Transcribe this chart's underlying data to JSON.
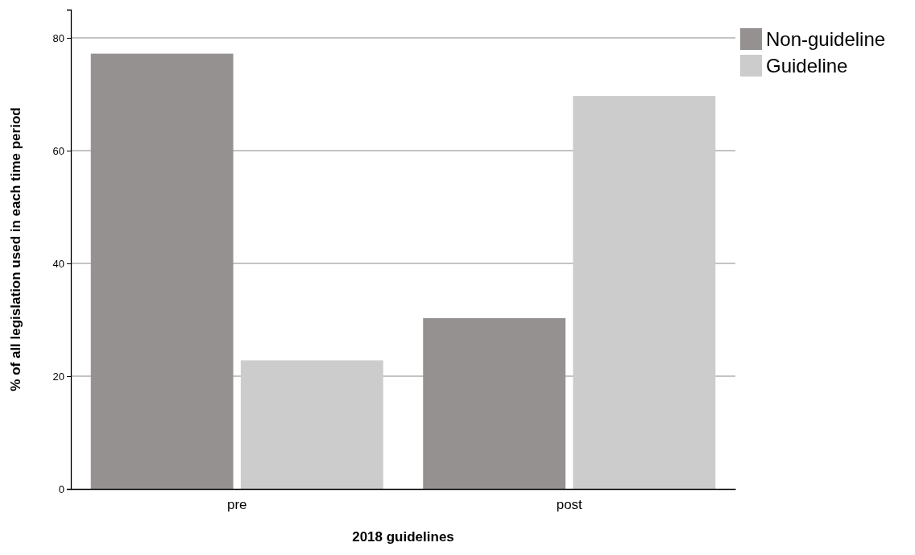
{
  "chart_data": {
    "type": "bar",
    "xlabel": "2018 guidelines",
    "ylabel": "% of all legislation used in each time period",
    "categories": [
      "pre",
      "post"
    ],
    "series": [
      {
        "name": "Non-guideline",
        "color": "#959190",
        "values": [
          77.2,
          30.3
        ]
      },
      {
        "name": "Guideline",
        "color": "#cccccc",
        "values": [
          22.8,
          69.7
        ]
      }
    ],
    "ylim": [
      0,
      85
    ],
    "yticks": [
      0,
      20,
      40,
      60,
      80
    ],
    "grid": "y",
    "legend": "top right"
  }
}
